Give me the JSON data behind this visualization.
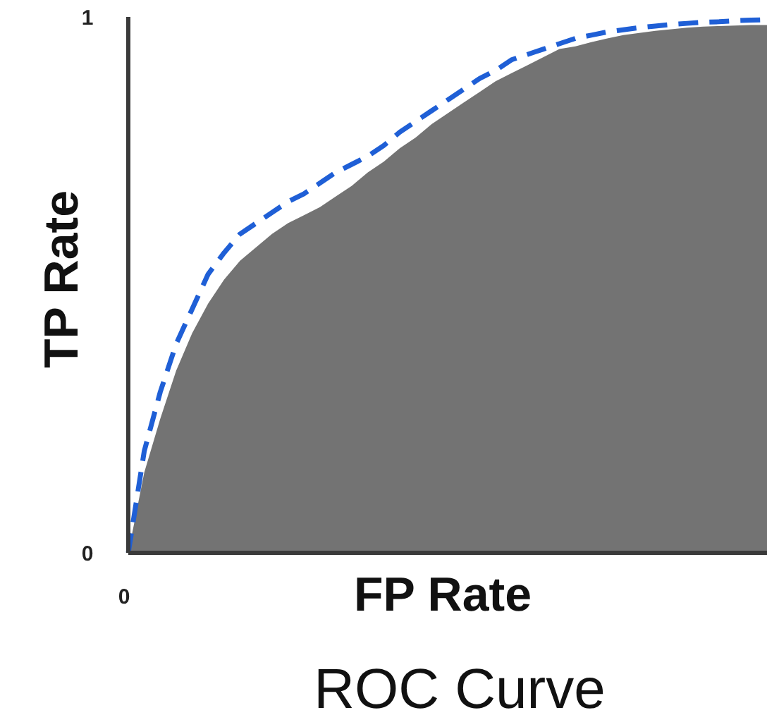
{
  "chart_data": {
    "type": "area",
    "title": "ROC Curve",
    "xlabel": "FP Rate",
    "ylabel": "TP Rate",
    "ylim": [
      0,
      1
    ],
    "yticks": [
      0,
      1
    ],
    "annotations": [
      "0"
    ],
    "categories": [
      null,
      null,
      null,
      null,
      null,
      null,
      null,
      null,
      null,
      null,
      null,
      null,
      null,
      null,
      null,
      null,
      null,
      null,
      null,
      null,
      null,
      null,
      null,
      null,
      null,
      null,
      null,
      null,
      null,
      null,
      null,
      null,
      null,
      null,
      null,
      null,
      null,
      null,
      null,
      null,
      null
    ],
    "series": [
      {
        "color": "#737373",
        "values": [
          0,
          0.15,
          0.25,
          0.34,
          0.41,
          0.465,
          0.51,
          0.545,
          0.57,
          0.595,
          0.615,
          0.63,
          0.645,
          0.665,
          0.685,
          0.71,
          0.73,
          0.755,
          0.775,
          0.8,
          0.82,
          0.84,
          0.86,
          0.88,
          0.895,
          0.91,
          0.925,
          0.94,
          0.945,
          0.953,
          0.96,
          0.966,
          0.97,
          0.974,
          0.977,
          0.98,
          0.982,
          0.983,
          0.984,
          0.985,
          0.985
        ]
      },
      {
        "type": "line",
        "color": "#1f5fd6",
        "line_style": "dashed",
        "values": [
          0,
          0.19,
          0.3,
          0.39,
          0.455,
          0.52,
          0.56,
          0.595,
          0.615,
          0.635,
          0.655,
          0.67,
          0.69,
          0.71,
          0.725,
          0.74,
          0.76,
          0.785,
          0.805,
          0.825,
          0.845,
          0.865,
          0.885,
          0.9,
          0.92,
          0.93,
          0.94,
          0.95,
          0.96,
          0.966,
          0.972,
          0.976,
          0.98,
          0.983,
          0.986,
          0.988,
          0.99,
          0.991,
          0.993,
          0.994,
          0.995
        ]
      }
    ]
  }
}
